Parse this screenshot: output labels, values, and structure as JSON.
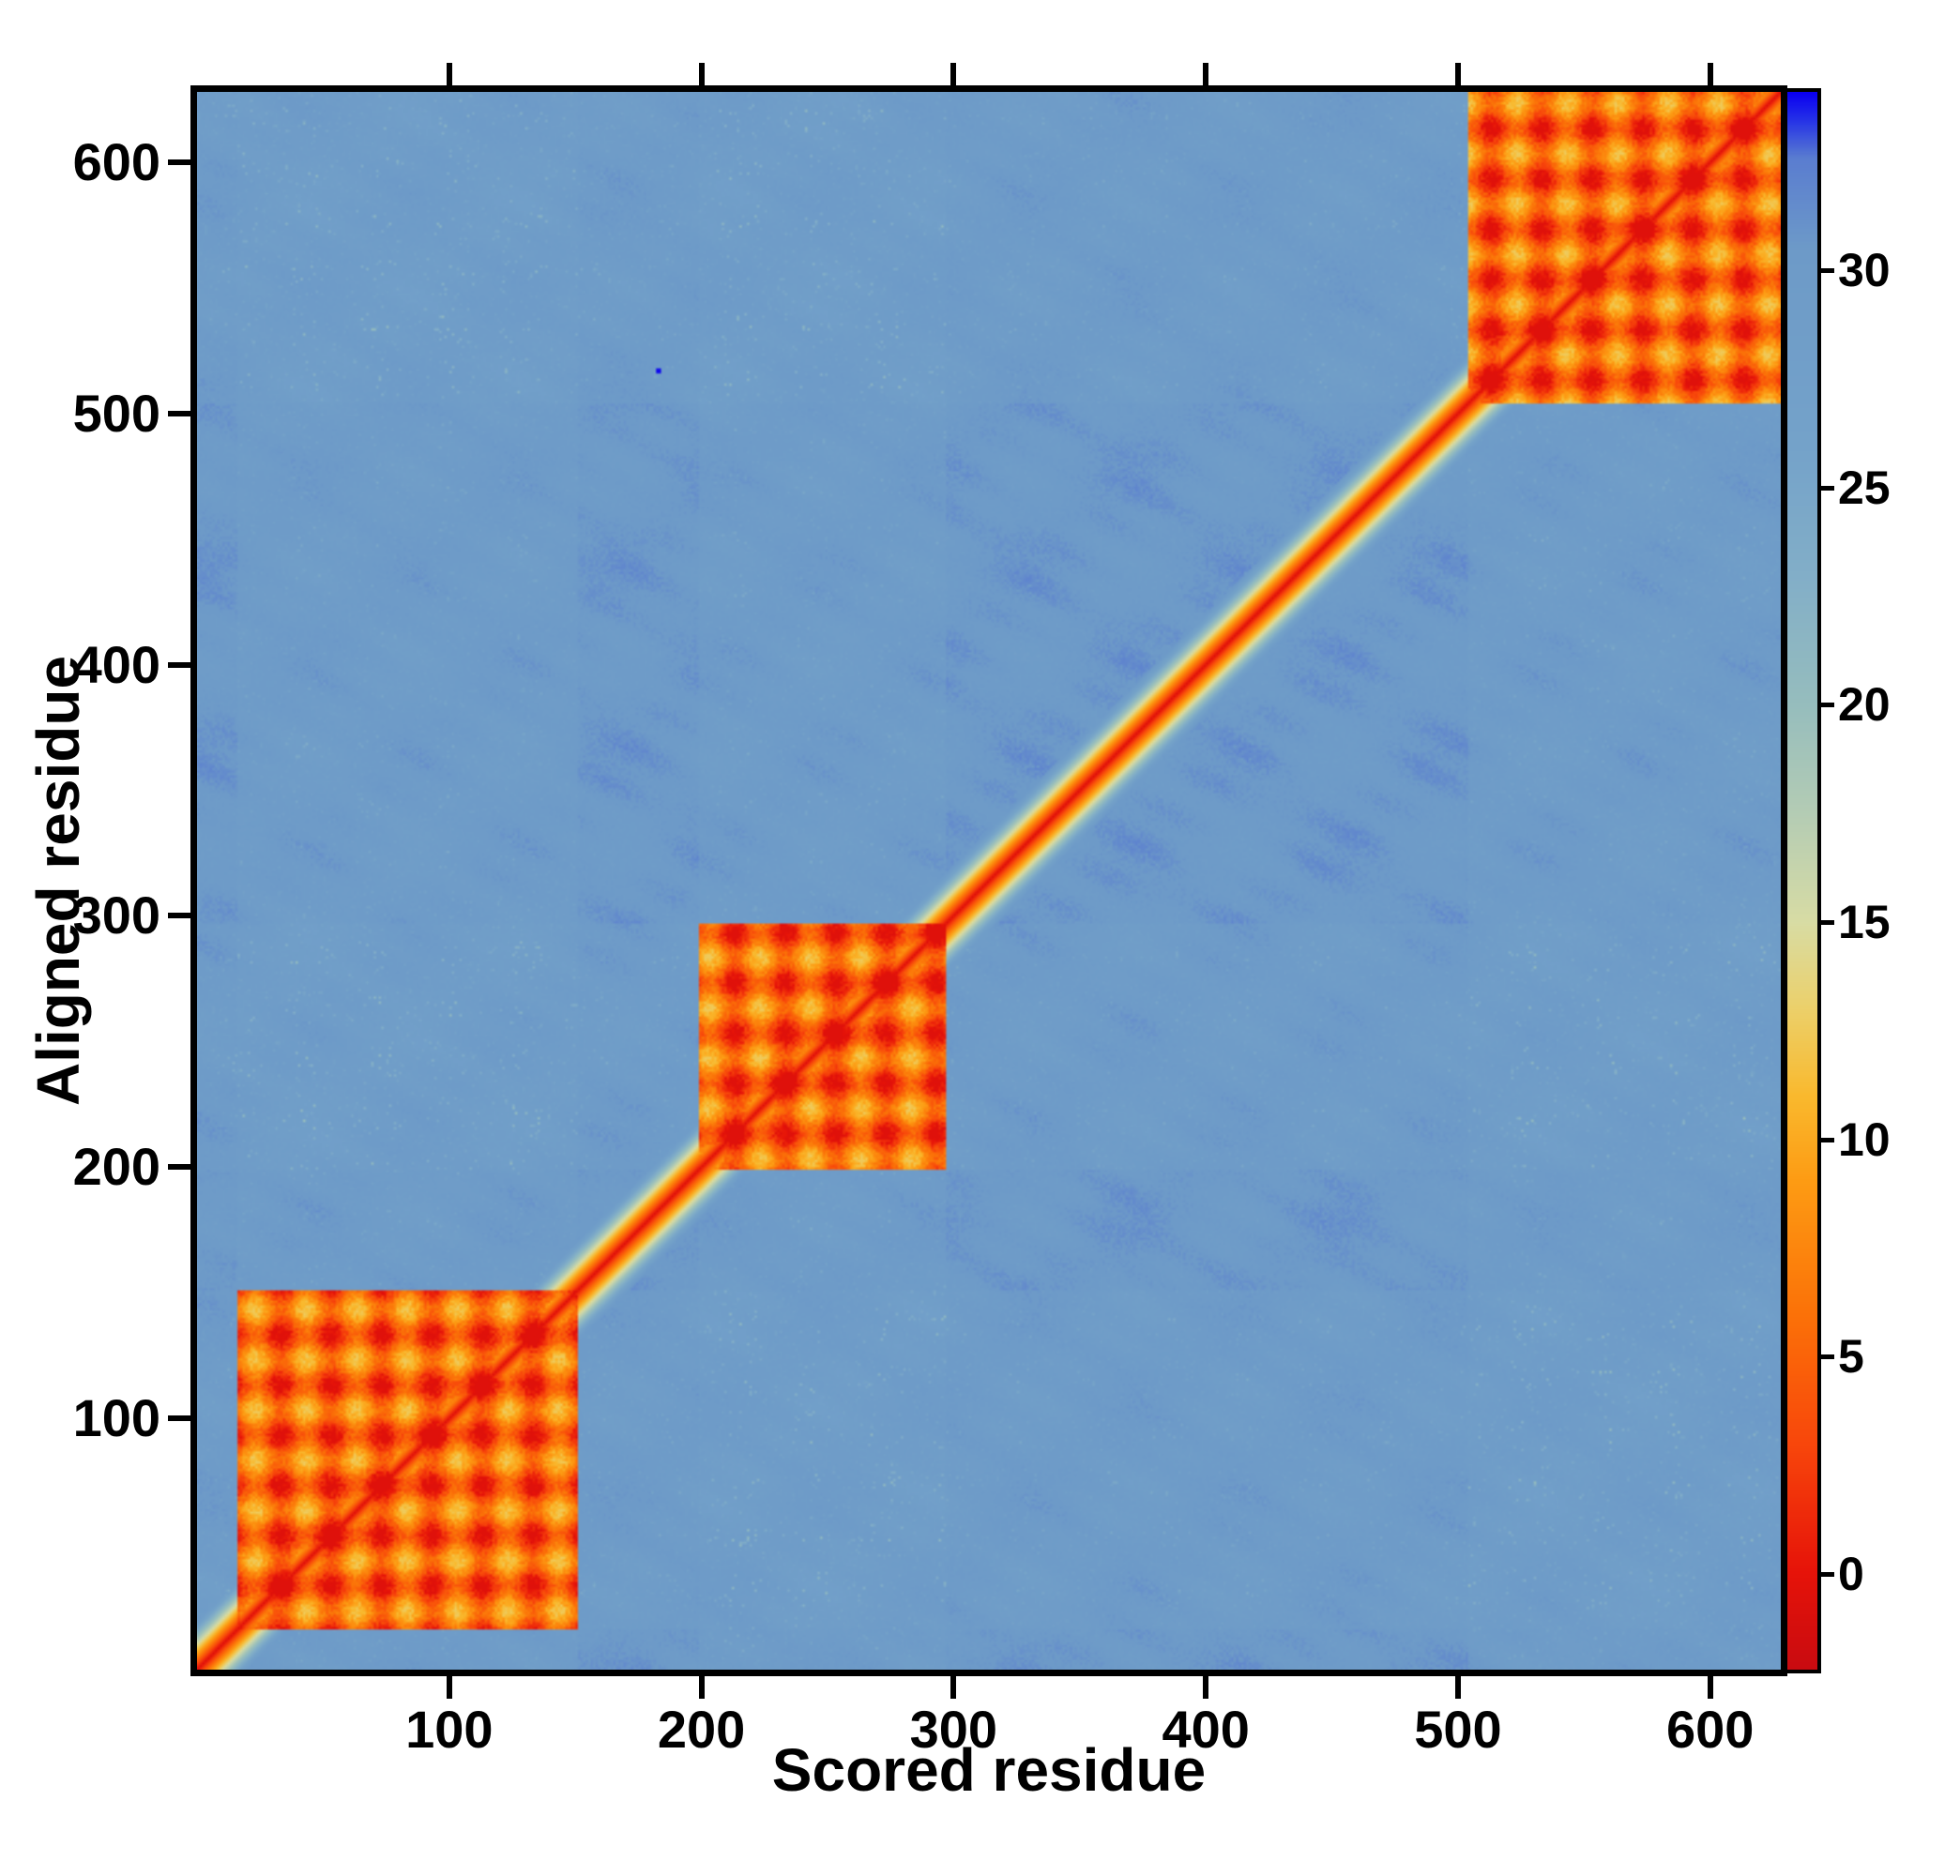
{
  "chart_data": {
    "type": "heatmap",
    "title": "",
    "xlabel": "Scored residue",
    "ylabel": "Aligned residue",
    "x_range": [
      0,
      628
    ],
    "y_range": [
      0,
      628
    ],
    "x_ticks": [
      100,
      200,
      300,
      400,
      500,
      600
    ],
    "y_ticks": [
      100,
      200,
      300,
      400,
      500,
      600
    ],
    "grid": false,
    "legend_position": "colorbar-right",
    "colorbar": {
      "range": [
        -2.2,
        34.1
      ],
      "ticks": [
        0,
        5,
        10,
        15,
        20,
        25,
        30
      ]
    },
    "background_value": 30.3,
    "diagonal_value": 0,
    "diagonal_halo_width": 22,
    "domain_blocks": [
      [
        16,
        150
      ],
      [
        199,
        296
      ],
      [
        504,
        627
      ]
    ],
    "block_value_range": [
      0,
      12.5
    ],
    "block_stripe_period": 20,
    "outlier_points": [
      {
        "x": 182,
        "y": 516,
        "value": 34
      }
    ],
    "colormap_stops": [
      [
        -2.2,
        "#c90b10"
      ],
      [
        0,
        "#e61309"
      ],
      [
        3,
        "#f8470b"
      ],
      [
        6,
        "#fb7208"
      ],
      [
        9,
        "#fd9b13"
      ],
      [
        11,
        "#f9b92e"
      ],
      [
        13,
        "#ecd06a"
      ],
      [
        15,
        "#d8dca4"
      ],
      [
        17.5,
        "#b4ccb4"
      ],
      [
        20,
        "#96bdbd"
      ],
      [
        23,
        "#82aec8"
      ],
      [
        26,
        "#74a2c9"
      ],
      [
        30.5,
        "#6d9ac8"
      ],
      [
        32.6,
        "#5a7dd0"
      ],
      [
        33.5,
        "#2430e8"
      ],
      [
        34.1,
        "#0b00f0"
      ]
    ],
    "description": "Pairwise residue alignment-error matrix: low error (red) along the diagonal and within three intra-domain blocks (~16-150, ~199-296, ~504-627); high error (steel blue ~30) elsewhere with scattered yellow-green low-confidence streaks."
  }
}
